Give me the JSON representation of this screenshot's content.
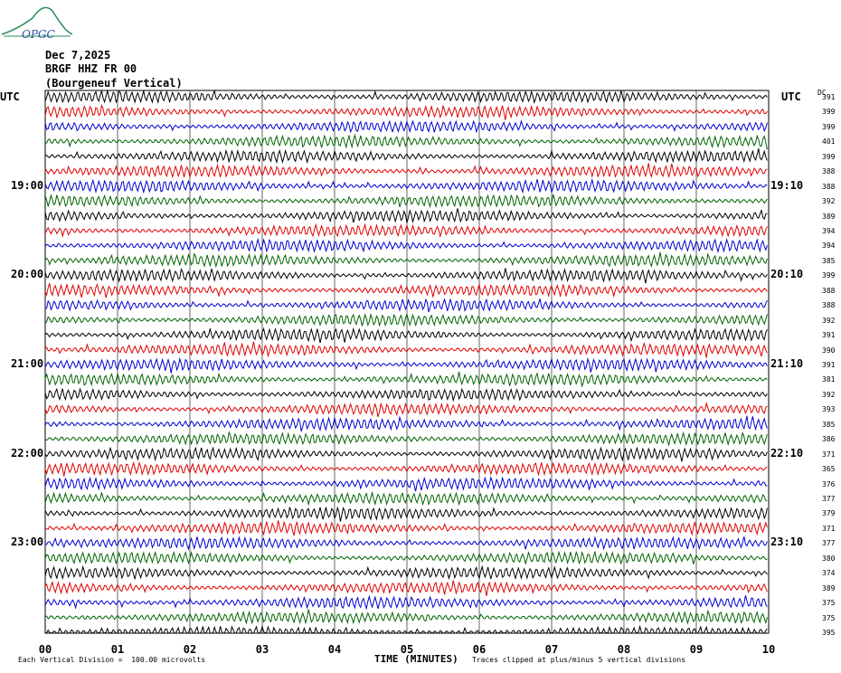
{
  "header": {
    "date": "Dec 7,2025",
    "station": "BRGF HHZ FR 00",
    "location": "(Bourgeneuf Vertical)",
    "logo_text": "OPGC"
  },
  "axes": {
    "left_tz": "UTC",
    "right_tz": "UTC",
    "dc_label": "DC",
    "x_title": "TIME (MINUTES)",
    "x_ticks": [
      "00",
      "01",
      "02",
      "03",
      "04",
      "05",
      "06",
      "07",
      "08",
      "09",
      "10"
    ]
  },
  "footer": {
    "scale_note": "Each Vertical Division =  100.00 microvolts",
    "clip_note": "Traces clipped at plus/minus 5 vertical divisions"
  },
  "colors": {
    "cycle": [
      "#000000",
      "#e00000",
      "#0000d0",
      "#006400"
    ],
    "grid": "#000000"
  },
  "chart_data": {
    "type": "line",
    "title": "",
    "x_range_minutes": [
      0,
      10
    ],
    "minutes_per_trace": 10,
    "traces_per_hour": 6,
    "left_hour_labels": [
      {
        "trace_index": 6,
        "label": "19:00"
      },
      {
        "trace_index": 12,
        "label": "20:00"
      },
      {
        "trace_index": 18,
        "label": "21:00"
      },
      {
        "trace_index": 24,
        "label": "22:00"
      },
      {
        "trace_index": 30,
        "label": "23:00"
      }
    ],
    "right_hour_labels": [
      {
        "trace_index": 6,
        "label": "19:10"
      },
      {
        "trace_index": 12,
        "label": "20:10"
      },
      {
        "trace_index": 18,
        "label": "21:10"
      },
      {
        "trace_index": 24,
        "label": "22:10"
      },
      {
        "trace_index": 30,
        "label": "23:10"
      }
    ],
    "dc_offsets": [
      391,
      399,
      399,
      401,
      399,
      388,
      388,
      392,
      389,
      394,
      394,
      385,
      399,
      388,
      388,
      392,
      391,
      390,
      391,
      381,
      392,
      393,
      385,
      386,
      371,
      365,
      376,
      377,
      379,
      371,
      377,
      380,
      374,
      389,
      375,
      375,
      395
    ]
  }
}
